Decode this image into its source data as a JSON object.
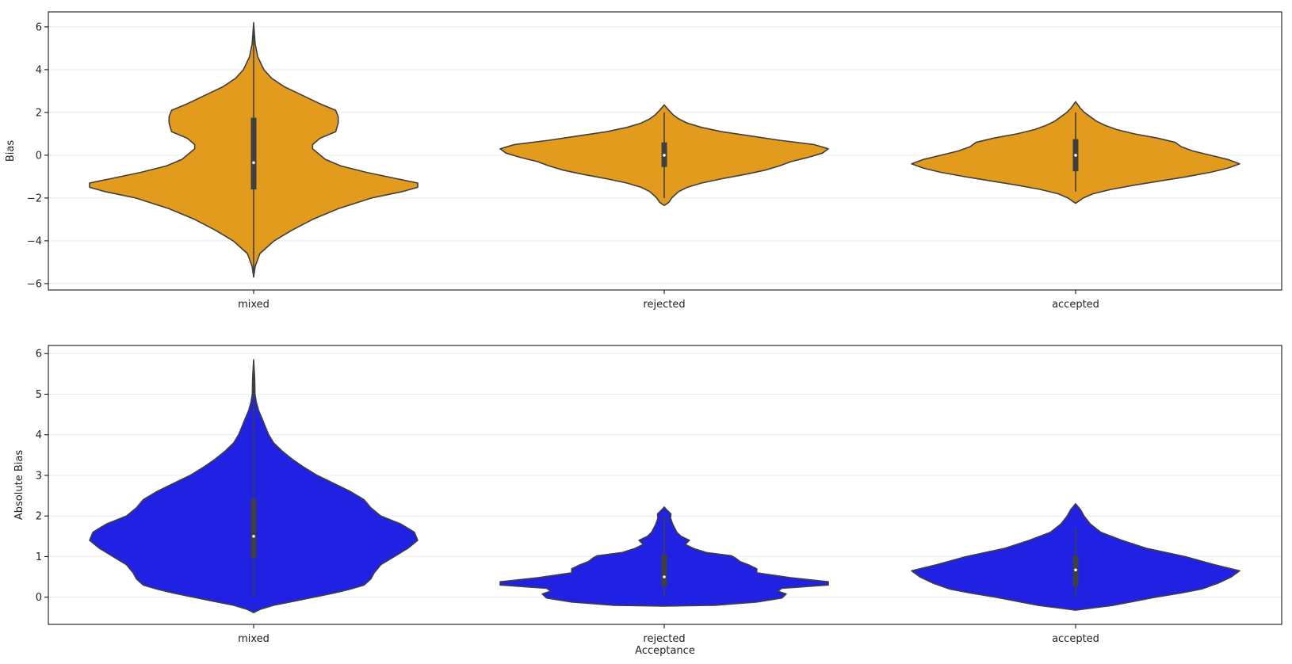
{
  "chart_data": [
    {
      "type": "violin",
      "xlabel": "",
      "ylabel": "Bias",
      "ylim": [
        -6.3,
        6.7
      ],
      "yticks": [
        -6,
        -4,
        -2,
        0,
        2,
        4,
        6
      ],
      "grid": "horizontal",
      "fill_color": "#E39B1D",
      "categories": [
        "mixed",
        "rejected",
        "accepted"
      ],
      "violins": [
        {
          "category": "mixed",
          "median": -0.35,
          "q1": -1.6,
          "q3": 1.75,
          "whisker_low": -5.6,
          "whisker_high": 6.1,
          "profile": [
            [
              -5.7,
              0
            ],
            [
              -5.2,
              0.3
            ],
            [
              -4.6,
              1.2
            ],
            [
              -4,
              4
            ],
            [
              -3.5,
              7.5
            ],
            [
              -3,
              11.5
            ],
            [
              -2.5,
              16.5
            ],
            [
              -2,
              23
            ],
            [
              -1.7,
              29
            ],
            [
              -1.5,
              32
            ],
            [
              -1.3,
              32
            ],
            [
              -1.1,
              28
            ],
            [
              -0.8,
              22
            ],
            [
              -0.5,
              17
            ],
            [
              -0.2,
              14
            ],
            [
              0.1,
              12.5
            ],
            [
              0.3,
              11.5
            ],
            [
              0.5,
              11.5
            ],
            [
              0.8,
              13
            ],
            [
              1.1,
              16
            ],
            [
              1.5,
              16.5
            ],
            [
              1.8,
              16.5
            ],
            [
              2.1,
              16
            ],
            [
              2.4,
              13
            ],
            [
              2.8,
              9.5
            ],
            [
              3.2,
              6
            ],
            [
              3.6,
              3.5
            ],
            [
              4,
              2
            ],
            [
              4.6,
              0.8
            ],
            [
              5.2,
              0.3
            ],
            [
              6.2,
              0
            ]
          ]
        },
        {
          "category": "rejected",
          "median": 0.0,
          "q1": -0.55,
          "q3": 0.6,
          "whisker_low": -2.0,
          "whisker_high": 2.0,
          "profile": [
            [
              -2.35,
              0
            ],
            [
              -2.2,
              0.8
            ],
            [
              -2,
              1.3
            ],
            [
              -1.7,
              2.5
            ],
            [
              -1.5,
              4
            ],
            [
              -1.3,
              6.5
            ],
            [
              -1.1,
              10
            ],
            [
              -0.9,
              14
            ],
            [
              -0.7,
              17.5
            ],
            [
              -0.5,
              20
            ],
            [
              -0.3,
              22
            ],
            [
              -0.1,
              25
            ],
            [
              0.1,
              27.5
            ],
            [
              0.3,
              28.5
            ],
            [
              0.5,
              26
            ],
            [
              0.7,
              20
            ],
            [
              0.9,
              15
            ],
            [
              1.1,
              10
            ],
            [
              1.3,
              6.5
            ],
            [
              1.5,
              4
            ],
            [
              1.7,
              2.5
            ],
            [
              1.9,
              1.5
            ],
            [
              2.1,
              0.8
            ],
            [
              2.35,
              0
            ]
          ]
        },
        {
          "category": "accepted",
          "median": 0.0,
          "q1": -0.75,
          "q3": 0.75,
          "whisker_low": -1.7,
          "whisker_high": 2.0,
          "profile": [
            [
              -2.25,
              0
            ],
            [
              -2,
              1.3
            ],
            [
              -1.8,
              3
            ],
            [
              -1.6,
              6
            ],
            [
              -1.4,
              10
            ],
            [
              -1.2,
              14.5
            ],
            [
              -1,
              19
            ],
            [
              -0.8,
              23
            ],
            [
              -0.6,
              26
            ],
            [
              -0.4,
              28
            ],
            [
              -0.2,
              26
            ],
            [
              0,
              23
            ],
            [
              0.2,
              20
            ],
            [
              0.4,
              18
            ],
            [
              0.6,
              17
            ],
            [
              0.8,
              14
            ],
            [
              1,
              10
            ],
            [
              1.2,
              7
            ],
            [
              1.4,
              5
            ],
            [
              1.6,
              3.5
            ],
            [
              1.8,
              2.5
            ],
            [
              2,
              1.5
            ],
            [
              2.2,
              0.8
            ],
            [
              2.5,
              0
            ]
          ]
        }
      ]
    },
    {
      "type": "violin",
      "xlabel": "Acceptance",
      "ylabel": "Absolute Bias",
      "ylim": [
        -0.67,
        6.2
      ],
      "yticks": [
        0,
        1,
        2,
        3,
        4,
        5,
        6
      ],
      "grid": "horizontal",
      "fill_color": "#2121E3",
      "categories": [
        "mixed",
        "rejected",
        "accepted"
      ],
      "violins": [
        {
          "category": "mixed",
          "median": 1.5,
          "q1": 0.97,
          "q3": 2.42,
          "whisker_low": 0.0,
          "whisker_high": 5.8,
          "profile": [
            [
              -0.38,
              0
            ],
            [
              -0.3,
              2
            ],
            [
              -0.2,
              6
            ],
            [
              -0.1,
              12
            ],
            [
              0,
              18
            ],
            [
              0.1,
              24
            ],
            [
              0.2,
              29
            ],
            [
              0.3,
              33
            ],
            [
              0.45,
              35
            ],
            [
              0.6,
              36
            ],
            [
              0.8,
              38
            ],
            [
              1,
              42
            ],
            [
              1.2,
              46
            ],
            [
              1.4,
              49
            ],
            [
              1.6,
              48
            ],
            [
              1.8,
              44
            ],
            [
              2,
              38
            ],
            [
              2.2,
              35
            ],
            [
              2.4,
              33
            ],
            [
              2.6,
              29
            ],
            [
              2.8,
              24
            ],
            [
              3,
              19
            ],
            [
              3.2,
              15
            ],
            [
              3.4,
              11.5
            ],
            [
              3.6,
              8.5
            ],
            [
              3.8,
              6
            ],
            [
              4,
              4.5
            ],
            [
              4.2,
              3.5
            ],
            [
              4.4,
              2.5
            ],
            [
              4.6,
              1.5
            ],
            [
              4.8,
              0.8
            ],
            [
              5,
              0.4
            ],
            [
              5.4,
              0.3
            ],
            [
              5.85,
              0
            ]
          ]
        },
        {
          "category": "rejected",
          "median": 0.5,
          "q1": 0.27,
          "q3": 1.05,
          "whisker_low": 0.0,
          "whisker_high": 2.0,
          "profile": [
            [
              -0.22,
              0
            ],
            [
              -0.2,
              12
            ],
            [
              -0.12,
              22
            ],
            [
              -0.02,
              28
            ],
            [
              0.08,
              29
            ],
            [
              0.15,
              27
            ],
            [
              0.22,
              28
            ],
            [
              0.3,
              39
            ],
            [
              0.38,
              39
            ],
            [
              0.48,
              30
            ],
            [
              0.6,
              22
            ],
            [
              0.7,
              22
            ],
            [
              0.8,
              20
            ],
            [
              0.88,
              18
            ],
            [
              0.96,
              17
            ],
            [
              1.02,
              16
            ],
            [
              1.1,
              10
            ],
            [
              1.2,
              7
            ],
            [
              1.3,
              5
            ],
            [
              1.4,
              6
            ],
            [
              1.5,
              4
            ],
            [
              1.6,
              3
            ],
            [
              1.7,
              2.5
            ],
            [
              1.8,
              2
            ],
            [
              1.95,
              1.5
            ],
            [
              2.05,
              1.6
            ],
            [
              2.15,
              0.6
            ],
            [
              2.22,
              0
            ]
          ]
        },
        {
          "category": "accepted",
          "median": 0.67,
          "q1": 0.27,
          "q3": 1.02,
          "whisker_low": 0.0,
          "whisker_high": 1.7,
          "profile": [
            [
              -0.32,
              0
            ],
            [
              -0.28,
              3
            ],
            [
              -0.2,
              9
            ],
            [
              -0.1,
              14
            ],
            [
              0,
              19
            ],
            [
              0.1,
              25
            ],
            [
              0.2,
              30
            ],
            [
              0.35,
              34
            ],
            [
              0.5,
              37
            ],
            [
              0.65,
              39
            ],
            [
              0.8,
              33
            ],
            [
              1,
              26
            ],
            [
              1.2,
              17
            ],
            [
              1.4,
              11
            ],
            [
              1.6,
              6
            ],
            [
              1.8,
              3.5
            ],
            [
              2,
              2
            ],
            [
              2.15,
              1.2
            ],
            [
              2.3,
              0
            ]
          ]
        }
      ]
    }
  ]
}
